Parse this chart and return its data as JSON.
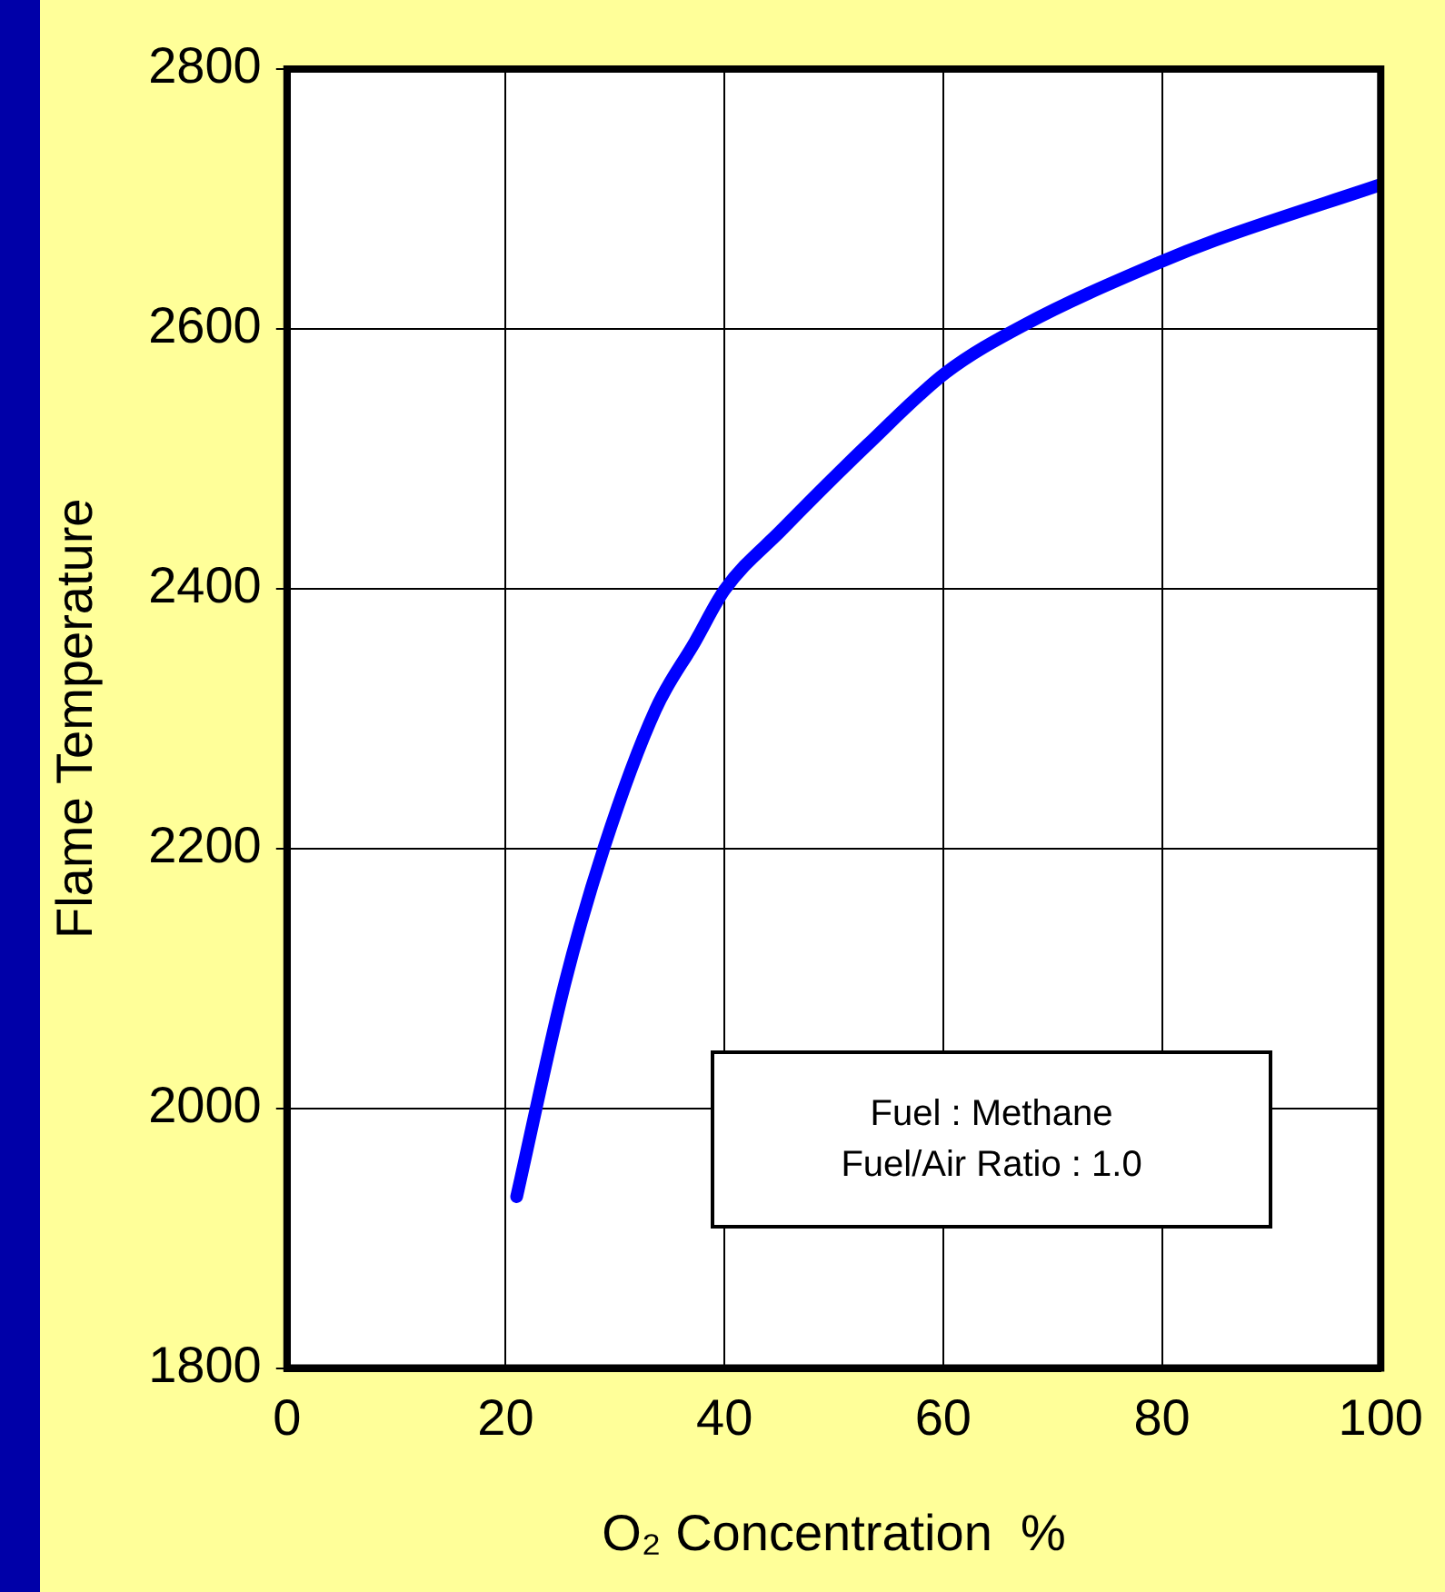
{
  "chart_data": {
    "type": "line",
    "xlabel": "O₂ Concentration  %",
    "ylabel": "Flame Temperature",
    "annotations": [
      "Fuel : Methane\nFuel/Air Ratio : 1.0"
    ],
    "series": [
      {
        "color": "#0000ff",
        "x": [
          21,
          25.4,
          29,
          33.7,
          37.3,
          40,
          45.2,
          53.1,
          60.2,
          67.4,
          80,
          84.8,
          100
        ],
        "values": [
          1932,
          2096,
          2201,
          2307,
          2359,
          2399,
          2445,
          2511,
          2566,
          2603,
          2652,
          2668,
          2711
        ]
      }
    ],
    "xlim": [
      0,
      100
    ],
    "xticks": [
      0,
      20,
      40,
      60,
      80,
      100
    ],
    "ylim": [
      1800,
      2800
    ],
    "yticks": [
      1800,
      2000,
      2200,
      2400,
      2600,
      2800
    ],
    "grid": true,
    "legend": false,
    "marker": "none",
    "line_style": "solid"
  }
}
